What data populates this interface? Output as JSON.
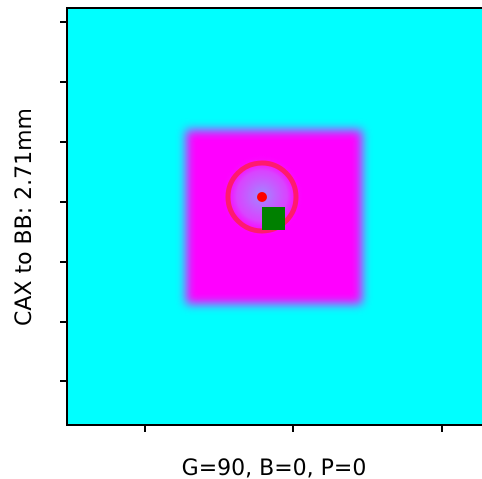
{
  "chart_data": {
    "type": "heatmap",
    "title": "",
    "xlabel": "G=90, B=0, P=0",
    "ylabel": "CAX to BB: 2.71mm",
    "x_ticks": 3,
    "y_ticks": 7,
    "tick_labels_visible": false,
    "colors": {
      "background_field": "#00ffff",
      "square_field": "#ff00ff",
      "center_glow": "#9a8cff",
      "ring": "#ff1a6e",
      "bb_marker": "#ff0000",
      "cax_marker": "#008000"
    },
    "markers": [
      {
        "name": "",
        "shape": "circle",
        "color": "#ff0000"
      },
      {
        "name": "",
        "shape": "square",
        "color": "#008000"
      }
    ]
  }
}
